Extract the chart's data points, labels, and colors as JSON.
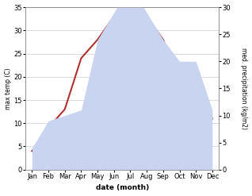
{
  "months": [
    "Jan",
    "Feb",
    "Mar",
    "Apr",
    "May",
    "Jun",
    "Jul",
    "Aug",
    "Sep",
    "Oct",
    "Nov",
    "Dec"
  ],
  "temp_C": [
    4,
    9,
    13,
    24,
    28,
    33,
    28,
    33,
    28,
    20,
    13,
    11
  ],
  "precip_mm": [
    4,
    9,
    10,
    11,
    24,
    29,
    34,
    29,
    24,
    20,
    20,
    11
  ],
  "temp_color": "#b03030",
  "precip_fill_color": "#c8d4f0",
  "ylim_temp": [
    0,
    35
  ],
  "ylim_precip": [
    0,
    30
  ],
  "xlabel": "date (month)",
  "ylabel_left": "max temp (C)",
  "ylabel_right": "med. precipitation (kg/m2)",
  "yticks_left": [
    0,
    5,
    10,
    15,
    20,
    25,
    30,
    35
  ],
  "yticks_right": [
    0,
    5,
    10,
    15,
    20,
    25,
    30
  ],
  "bg_color": "#ffffff",
  "grid_color": "#cccccc",
  "temp_linewidth": 1.5,
  "label_fontsize": 5.5,
  "xlabel_fontsize": 6.5,
  "tick_fontsize": 6
}
